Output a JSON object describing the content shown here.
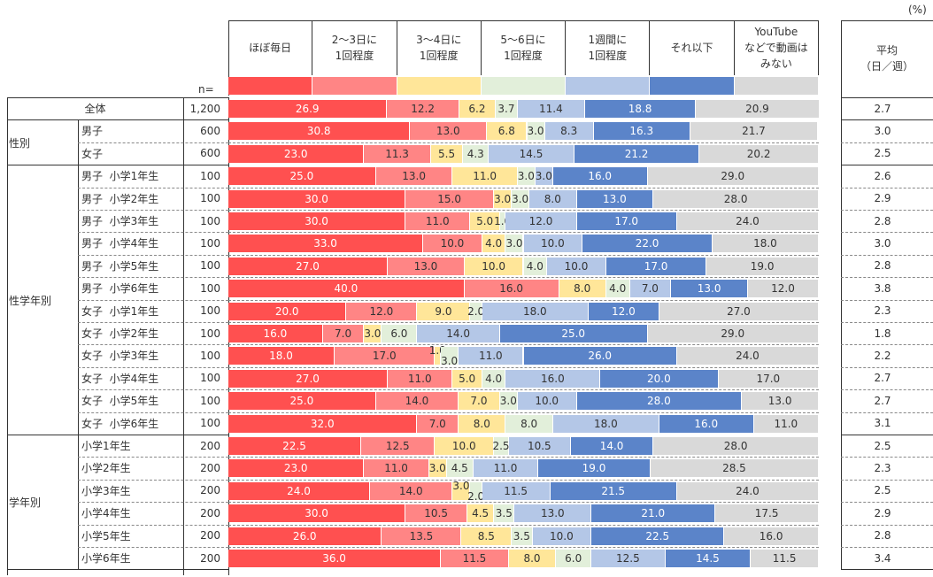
{
  "unit_label": "(%)",
  "n_label": "n=",
  "avg_header": "平均\n（日／週）",
  "chart_data": {
    "type": "bar",
    "orientation": "horizontal",
    "stacked": true,
    "xlim": [
      0,
      100
    ],
    "categories_header": [
      "ほぼ毎日",
      "2～3日に\n1回程度",
      "3～4日に\n1回程度",
      "5～6日に\n1回程度",
      "1週間に\n1回程度",
      "それ以下",
      "YouTube\nなどで動画は\nみない"
    ],
    "colors": [
      "#FF5050",
      "#FF8585",
      "#FFE699",
      "#E2EFDA",
      "#B4C7E7",
      "#5B84C9",
      "#D9D9D9"
    ],
    "groups": [
      {
        "label": "全体",
        "rows": [
          {
            "label": "全体",
            "n": "1,200",
            "values": [
              26.9,
              12.2,
              6.2,
              3.7,
              11.4,
              18.8,
              20.9
            ],
            "avg": "2.7"
          }
        ]
      },
      {
        "label": "性別",
        "rows": [
          {
            "label": "男子",
            "n": "600",
            "values": [
              30.8,
              13.0,
              6.8,
              3.0,
              8.3,
              16.3,
              21.7
            ],
            "avg": "3.0"
          },
          {
            "label": "女子",
            "n": "600",
            "values": [
              23.0,
              11.3,
              5.5,
              4.3,
              14.5,
              21.2,
              20.2
            ],
            "avg": "2.5"
          }
        ]
      },
      {
        "label": "性学年別",
        "rows": [
          {
            "label": "男子  小学1年生",
            "n": "100",
            "values": [
              25,
              13,
              11,
              3,
              3,
              16,
              29
            ],
            "avg": "2.6"
          },
          {
            "label": "男子  小学2年生",
            "n": "100",
            "values": [
              30,
              15,
              3,
              3,
              8,
              13,
              28
            ],
            "avg": "2.9"
          },
          {
            "label": "男子  小学3年生",
            "n": "100",
            "values": [
              30,
              11,
              5,
              1,
              12,
              17,
              24
            ],
            "avg": "2.8"
          },
          {
            "label": "男子  小学4年生",
            "n": "100",
            "values": [
              33,
              10,
              4,
              3,
              10,
              22,
              18
            ],
            "avg": "3.0"
          },
          {
            "label": "男子  小学5年生",
            "n": "100",
            "values": [
              27,
              13,
              10,
              4,
              10,
              17,
              19
            ],
            "avg": "2.8"
          },
          {
            "label": "男子  小学6年生",
            "n": "100",
            "values": [
              40,
              16,
              8,
              4,
              7,
              13,
              12
            ],
            "avg": "3.8"
          },
          {
            "label": "女子  小学1年生",
            "n": "100",
            "values": [
              20,
              12,
              9,
              2,
              18,
              12,
              27
            ],
            "avg": "2.3"
          },
          {
            "label": "女子  小学2年生",
            "n": "100",
            "values": [
              16,
              7,
              3,
              6,
              14,
              25,
              29
            ],
            "avg": "1.8"
          },
          {
            "label": "女子  小学3年生",
            "n": "100",
            "values": [
              18,
              17,
              1,
              3,
              11,
              26,
              24
            ],
            "avg": "2.2"
          },
          {
            "label": "女子  小学4年生",
            "n": "100",
            "values": [
              27,
              11,
              5,
              4,
              16,
              20,
              17
            ],
            "avg": "2.7"
          },
          {
            "label": "女子  小学5年生",
            "n": "100",
            "values": [
              25,
              14,
              7,
              3,
              10,
              28,
              13
            ],
            "avg": "2.7"
          },
          {
            "label": "女子  小学6年生",
            "n": "100",
            "values": [
              32,
              7,
              8,
              8,
              18,
              16,
              11
            ],
            "avg": "3.1"
          }
        ]
      },
      {
        "label": "学年別",
        "rows": [
          {
            "label": "小学1年生",
            "n": "200",
            "values": [
              22.5,
              12.5,
              10.0,
              2.5,
              10.5,
              14.0,
              28.0
            ],
            "avg": "2.5"
          },
          {
            "label": "小学2年生",
            "n": "200",
            "values": [
              23.0,
              11.0,
              3.0,
              4.5,
              11.0,
              19.0,
              28.5
            ],
            "avg": "2.3"
          },
          {
            "label": "小学3年生",
            "n": "200",
            "values": [
              24.0,
              14.0,
              3.0,
              2.0,
              11.5,
              21.5,
              24.0
            ],
            "avg": "2.5"
          },
          {
            "label": "小学4年生",
            "n": "200",
            "values": [
              30.0,
              10.5,
              4.5,
              3.5,
              13.0,
              21.0,
              17.5
            ],
            "avg": "2.9"
          },
          {
            "label": "小学5年生",
            "n": "200",
            "values": [
              26.0,
              13.5,
              8.5,
              3.5,
              10.0,
              22.5,
              16.0
            ],
            "avg": "2.8"
          },
          {
            "label": "小学6年生",
            "n": "200",
            "values": [
              36.0,
              11.5,
              8.0,
              6.0,
              12.5,
              14.5,
              11.5
            ],
            "avg": "3.4"
          }
        ]
      }
    ]
  }
}
